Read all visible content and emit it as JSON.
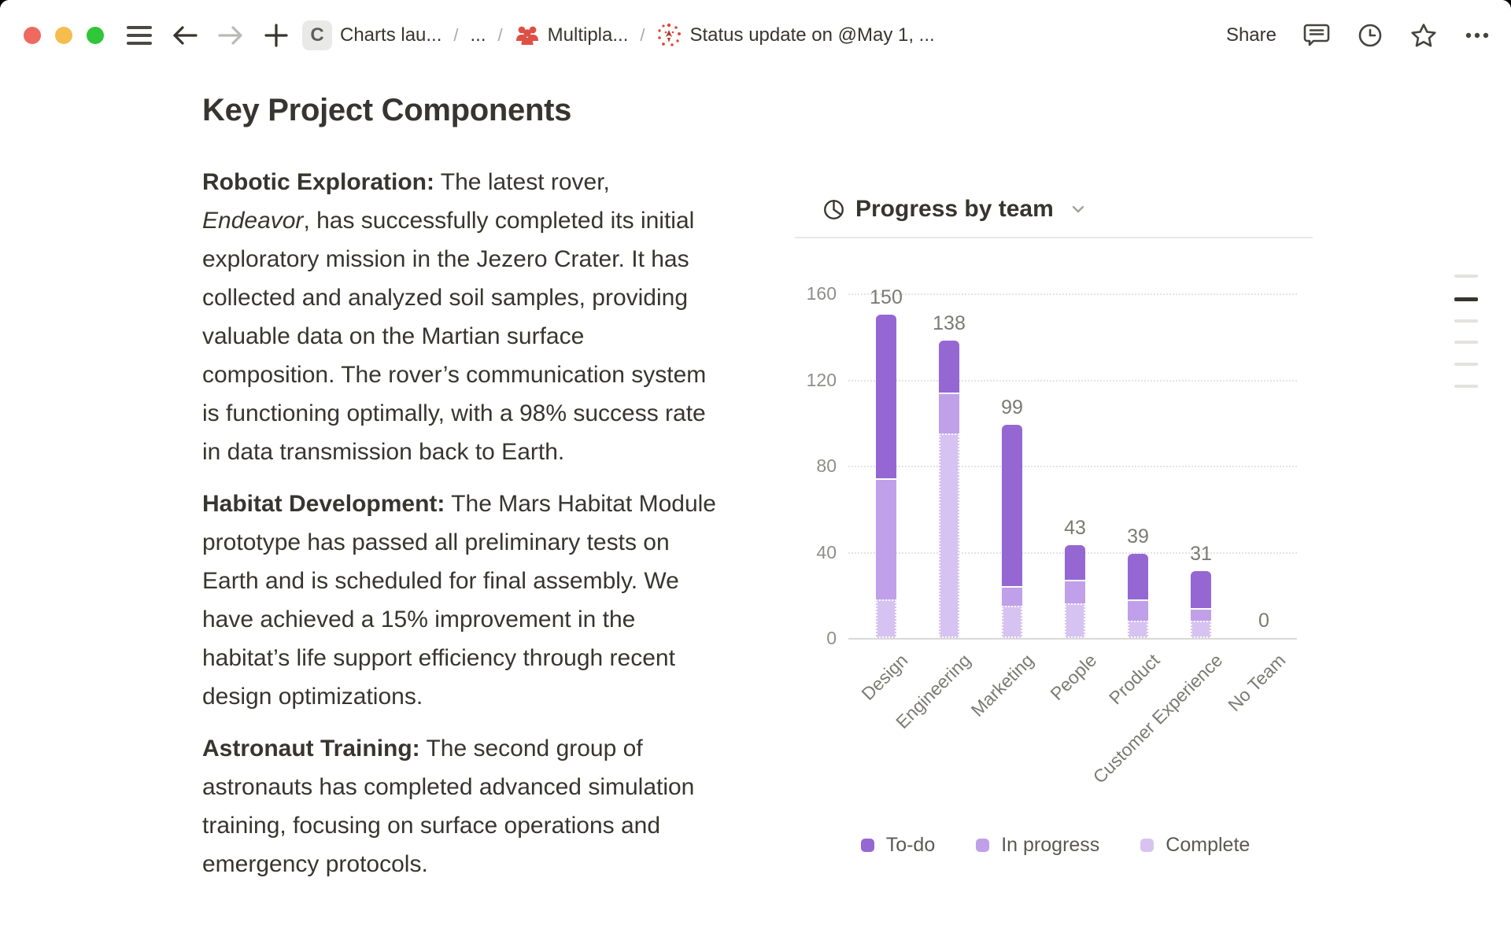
{
  "window": {
    "control_colors": {
      "close": "#ee6a5e",
      "minimize": "#f5bd4e",
      "zoom": "#2fc639"
    }
  },
  "topbar": {
    "separator": "/",
    "breadcrumb": {
      "workspace": {
        "chip_letter": "C",
        "label": "Charts lau..."
      },
      "collapsed": "...",
      "teamspace": {
        "label": "Multipla..."
      },
      "page": {
        "label": "Status update on @May 1, ..."
      }
    },
    "share_label": "Share"
  },
  "document": {
    "title": "Key Project Components",
    "paragraphs": [
      {
        "lead": "Robotic Exploration:",
        "segments": [
          {
            "text": " The latest rover, "
          },
          {
            "text": "Endeavor",
            "italic": true
          },
          {
            "text": ", has successfully completed its initial exploratory mission in the Jezero Crater. It has collected and analyzed soil samples, providing valuable data on the Martian surface composition. The rover’s communication system is functioning optimally, with a 98% success rate in data transmission back to Earth."
          }
        ]
      },
      {
        "lead": "Habitat Development:",
        "segments": [
          {
            "text": " The Mars Habitat Module prototype has passed all preliminary tests on Earth and is scheduled for final assembly. We have achieved a 15% improvement in the habitat’s life support efficiency through recent design optimizations."
          }
        ]
      },
      {
        "lead": "Astronaut Training:",
        "segments": [
          {
            "text": " The second group of astronauts has completed advanced simulation training, focusing on surface operations and emergency protocols."
          }
        ]
      }
    ]
  },
  "chart": {
    "header": {
      "title": "Progress by team"
    }
  },
  "chart_data": {
    "type": "bar",
    "stacked": true,
    "title": "Progress by team",
    "categories": [
      "Design",
      "Engineering",
      "Marketing",
      "People",
      "Product",
      "Customer Experience",
      "No Team"
    ],
    "series": [
      {
        "name": "To-do",
        "color": "#9567d3",
        "values": [
          76,
          24,
          75,
          16,
          21,
          17,
          0
        ]
      },
      {
        "name": "In progress",
        "color": "#c0a0e8",
        "values": [
          56,
          19,
          9,
          11,
          10,
          6,
          0
        ]
      },
      {
        "name": "Complete",
        "color": "#d7c3f1",
        "values": [
          18,
          95,
          15,
          16,
          8,
          8,
          0
        ]
      }
    ],
    "totals": [
      150,
      138,
      99,
      43,
      39,
      31,
      0
    ],
    "total_labels": [
      "150",
      "138",
      "99",
      "43",
      "39",
      "31",
      "0"
    ],
    "ylim": [
      0,
      160
    ],
    "yticks": [
      0,
      40,
      80,
      120,
      160
    ],
    "grid": "dotted-horizontal",
    "legend_position": "bottom",
    "legend": [
      "To-do",
      "In progress",
      "Complete"
    ]
  },
  "outline_rail": {
    "item_count": 6,
    "active_index": 1
  }
}
